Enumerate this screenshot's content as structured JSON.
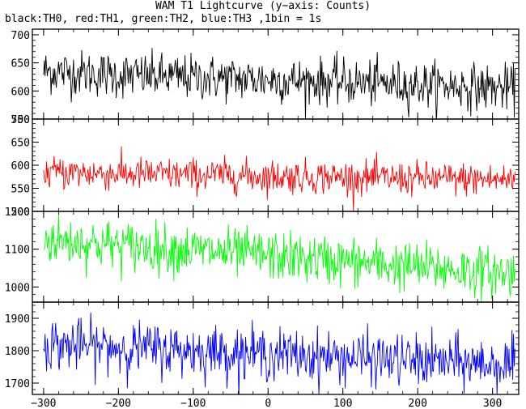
{
  "title": "WAM T1 Lightcurve (y−axis: Counts)",
  "subtitle": "black:TH0, red:TH1, green:TH2, blue:TH3 ,1bin = 1s",
  "chart_data": [
    {
      "type": "line",
      "color": "#000000",
      "xlim": [
        -315,
        335
      ],
      "ylim": [
        550,
        710
      ],
      "yticks": [
        550,
        600,
        650,
        700
      ],
      "x": [
        -300,
        -250,
        -200,
        -150,
        -100,
        -50,
        0,
        50,
        100,
        150,
        200,
        250,
        300,
        330
      ],
      "values": [
        635,
        632,
        628,
        626,
        624,
        622,
        620,
        618,
        616,
        613,
        611,
        609,
        606,
        604
      ],
      "noise_amplitude": 28
    },
    {
      "type": "line",
      "color": "#ff0000",
      "xlim": [
        -315,
        335
      ],
      "ylim": [
        500,
        700
      ],
      "yticks": [
        500,
        550,
        600,
        650,
        700
      ],
      "x": [
        -300,
        -250,
        -200,
        -150,
        -100,
        -50,
        0,
        50,
        100,
        150,
        200,
        250,
        300,
        330
      ],
      "values": [
        585,
        583,
        582,
        580,
        579,
        578,
        576,
        575,
        574,
        572,
        571,
        570,
        569,
        568
      ],
      "noise_amplitude": 25
    },
    {
      "type": "line",
      "color": "#00ff00",
      "xlim": [
        -315,
        335
      ],
      "ylim": [
        960,
        1200
      ],
      "yticks": [
        1000,
        1100,
        1200
      ],
      "x": [
        -300,
        -250,
        -200,
        -150,
        -100,
        -50,
        0,
        50,
        100,
        150,
        200,
        250,
        300,
        330
      ],
      "values": [
        1125,
        1118,
        1110,
        1103,
        1097,
        1090,
        1083,
        1075,
        1068,
        1060,
        1053,
        1046,
        1040,
        1036
      ],
      "noise_amplitude": 45
    },
    {
      "type": "line",
      "color": "#0000ff",
      "xlim": [
        -315,
        335
      ],
      "ylim": [
        1665,
        1950
      ],
      "yticks": [
        1700,
        1800,
        1900
      ],
      "x": [
        -300,
        -250,
        -200,
        -150,
        -100,
        -50,
        0,
        50,
        100,
        150,
        200,
        250,
        300,
        330
      ],
      "values": [
        1820,
        1815,
        1810,
        1805,
        1800,
        1795,
        1790,
        1784,
        1779,
        1774,
        1768,
        1764,
        1759,
        1756
      ],
      "noise_amplitude": 55
    }
  ],
  "xticks": [
    -300,
    -200,
    -100,
    0,
    100,
    200,
    300
  ]
}
